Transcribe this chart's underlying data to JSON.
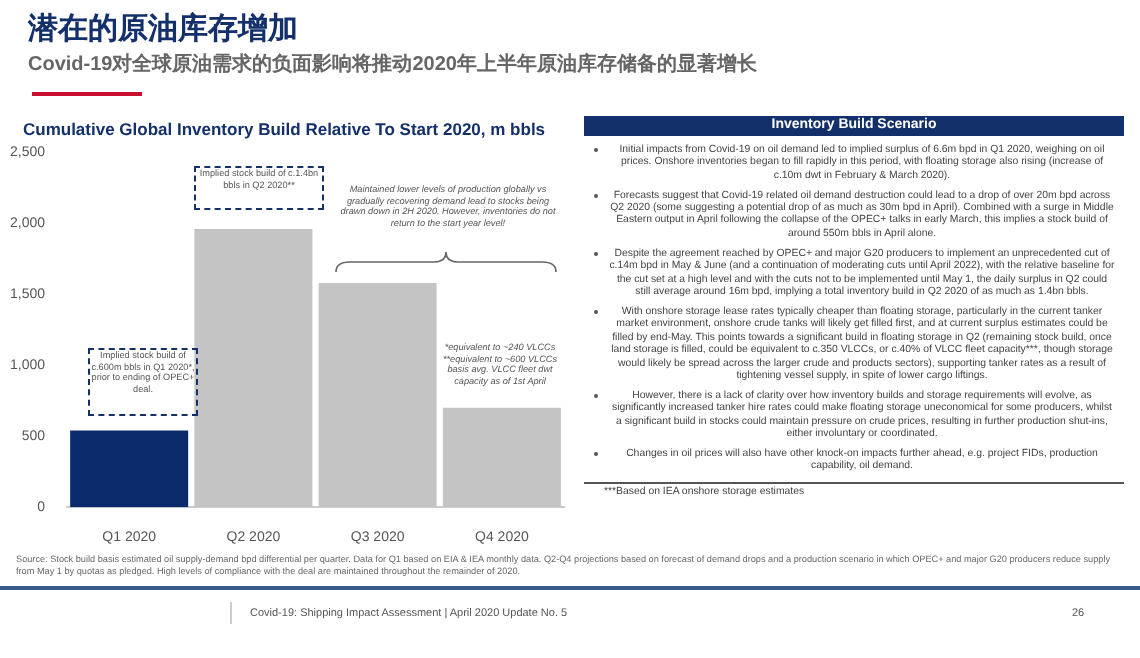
{
  "chart_data": [
    {
      "type": "other",
      "title": "潜在的原油库存增加",
      "subtitle": "Covid-19对全球原油需求的负面影响将推动2020年上半年原油库存储备的显著增长"
    },
    {
      "type": "bar",
      "title": "Cumulative Global Inventory Build Relative To Start 2020, m bbls",
      "categories": [
        "Q1 2020",
        "Q2 2020",
        "Q3 2020",
        "Q4 2020"
      ],
      "values": [
        540,
        1960,
        1580,
        700
      ],
      "colors": [
        "#0b2a6b",
        "#c4c4c4",
        "#c4c4c4",
        "#c4c4c4"
      ],
      "ylim": [
        0,
        2500
      ],
      "yticks": [
        {
          "value": 0,
          "label": "0"
        },
        {
          "value": 500,
          "label": "500"
        },
        {
          "value": 1000,
          "label": "1,000"
        },
        {
          "value": 1500,
          "label": "1,500"
        },
        {
          "value": 2000,
          "label": "2,000"
        },
        {
          "value": 2500,
          "label": "2,500"
        }
      ],
      "annotations": [
        "Implied stock build of c.600m bbls in Q1 2020*, prior to ending of OPEC+ deal.",
        "Implied stock build of c.1.4bn bbls in Q2 2020**",
        "Maintained lower levels of production globally vs gradually recovering demand lead to stocks being drawn down in 2H 2020. However, inventories do not return to the start year level!",
        "*equivalent to ~240 VLCCs **equivalent to ~600 VLCCs basis avg. VLCC fleet dwt capacity as of 1st April",
        "Source: Stock build basis estimated oil supply-demand bpd differential per quarter. Data for Q1 based on EIA & IEA monthly data. Q2-Q4 projections based on forecast of demand drops and a production scenario in which OPEC+ and major G20 producers reduce supply from May 1 by quotas as pledged. High levels of compliance with the deal are maintained throughout the remainder of 2020."
      ]
    },
    {
      "type": "other",
      "title": "Inventory Build Scenario",
      "annotations": [
        "Initial impacts from Covid-19 on oil demand led to implied surplus of 6.6m bpd in Q1 2020, weighing on oil prices. Onshore inventories began to fill rapidly in this period, with floating storage also rising (increase of c.10m dwt in February & March 2020).",
        "Forecasts suggest that Covid-19 related oil demand destruction could lead to a drop of over 20m bpd across Q2 2020 (some suggesting a potential drop of as much as 30m bpd in April). Combined with a surge in Middle Eastern output in April following the collapse of the OPEC+ talks in early March, this implies a stock build of around 550m bbls in April alone.",
        "Despite the agreement reached by OPEC+ and major G20 producers to implement an unprecedented cut of c.14m bpd in May & June (and a continuation of moderating cuts until April 2022), with the relative baseline for the cut set at a high level and with the cuts not to be implemented until May 1, the daily surplus in Q2 could still average around 16m bpd, implying a total inventory build in Q2 2020 of as much as 1.4bn bbls.",
        "With onshore storage lease rates typically cheaper than floating storage, particularly in the current tanker market environment, onshore crude tanks will likely get filled first, and at current surplus estimates could be filled by end-May. This points towards a significant build in floating storage in Q2 (remaining stock build, once land storage is filled, could be equivalent to c.350 VLCCs, or c.40% of VLCC fleet capacity***, though storage would likely be spread across the larger crude and products sectors), supporting tanker rates as a result of tightening vessel supply, in spite of lower cargo liftings.",
        "However, there is a lack of clarity over how inventory builds and storage requirements will evolve, as significantly increased tanker hire rates could make floating storage uneconomical for some producers, whilst a significant build in stocks could maintain pressure on crude prices, resulting in further production shut-ins, either involuntary or coordinated.",
        "Changes in oil prices will also have other knock-on impacts further ahead, e.g. project FIDs, production capability, oil demand.",
        "***Based on IEA onshore storage estimates"
      ]
    },
    {
      "type": "other",
      "annotations": [
        "Covid-19: Shipping Impact Assessment | April 2020 Update No. 5",
        "26"
      ]
    }
  ]
}
